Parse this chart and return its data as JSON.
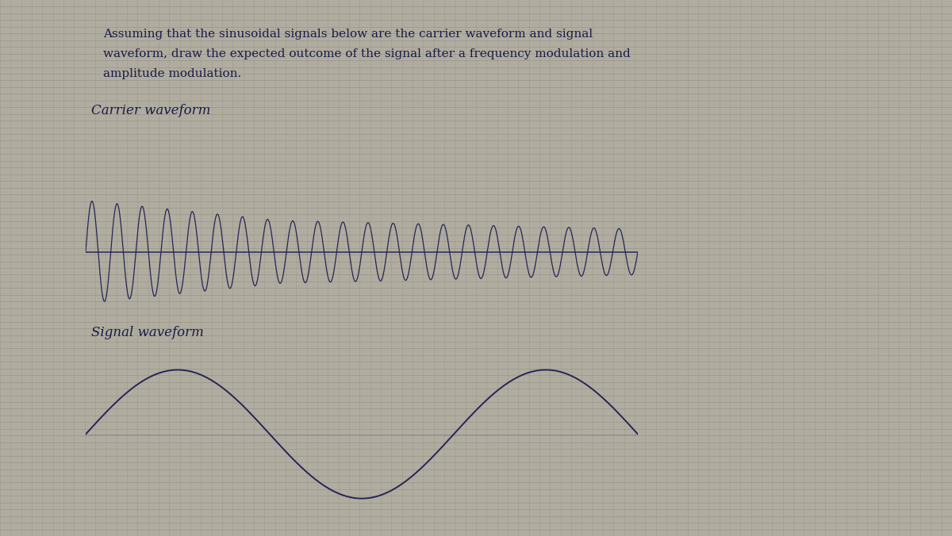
{
  "background_color": "#b0aca0",
  "line_h_color": "#8a8878",
  "line_v_color": "#8a8878",
  "wave_color": "#252555",
  "text_color": "#1a1a48",
  "title_line1": "Assuming that the sinusoidal signals below are the carrier waveform and signal",
  "title_line2": "waveform, draw the expected outcome of the signal after a frequency modulation and",
  "title_line3": "amplitude modulation.",
  "carrier_label": "Carrier waveform",
  "signal_label": "Signal waveform",
  "n_hlines": 80,
  "n_vlines": 90,
  "carrier_freq": 22,
  "signal_freq": 1.5,
  "n_points": 5000,
  "fig_width": 12.0,
  "fig_height": 6.76,
  "dpi": 100
}
